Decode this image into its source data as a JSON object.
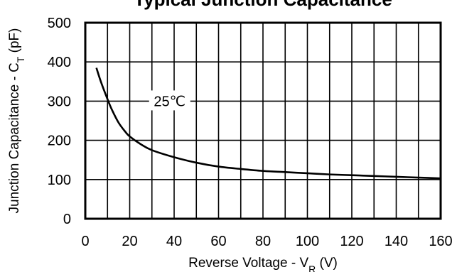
{
  "chart_data": {
    "type": "line",
    "title": "Typical Junction Capacitance",
    "xlabel": "Reverse Voltage - V",
    "xlabel_sub": "R",
    "xlabel_unit": " (V)",
    "ylabel": "Junction Capacitance - C",
    "ylabel_sub": "T",
    "ylabel_unit": " (pF)",
    "xlim": [
      0,
      160
    ],
    "ylim": [
      0,
      500
    ],
    "xticks": [
      0,
      20,
      40,
      60,
      80,
      100,
      120,
      140,
      160
    ],
    "yticks": [
      0,
      100,
      200,
      300,
      400,
      500
    ],
    "grid": true,
    "series": [
      {
        "x": [
          5,
          7,
          10,
          12,
          15,
          18,
          20,
          25,
          30,
          40,
          50,
          60,
          70,
          80,
          90,
          100,
          110,
          120,
          130,
          140,
          150,
          160
        ],
        "y": [
          385,
          350,
          305,
          278,
          245,
          222,
          210,
          190,
          175,
          157,
          143,
          133,
          127,
          122,
          119,
          116,
          113,
          111,
          109,
          107,
          105,
          103
        ]
      }
    ],
    "annotations": [
      {
        "text": "25℃",
        "x": 38,
        "y": 300
      }
    ]
  }
}
